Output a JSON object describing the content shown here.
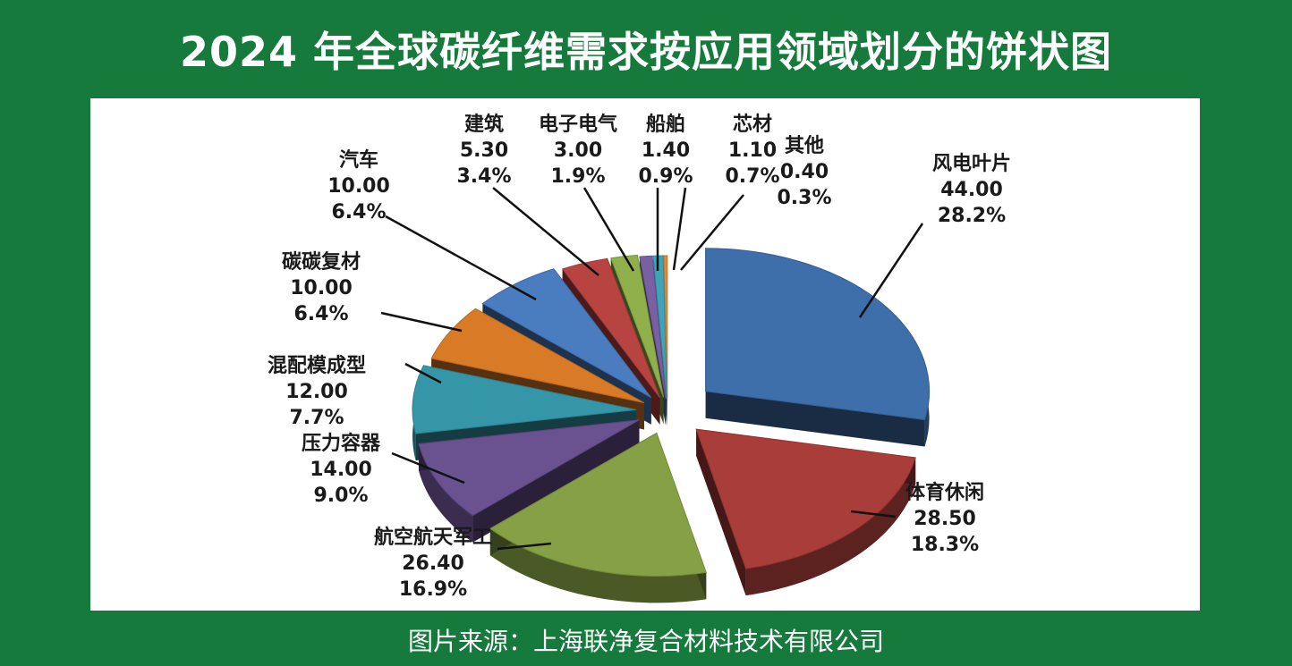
{
  "header": {
    "title": "2024 年全球碳纤维需求按应用领域划分的饼状图"
  },
  "footer": {
    "source": "图片来源：上海联净复合材料技术有限公司"
  },
  "chart_data": {
    "type": "pie",
    "title": "2024 年全球碳纤维需求按应用领域划分的饼状图",
    "slices": [
      {
        "label": "风电叶片",
        "value": "44.00",
        "percent": "28.2%",
        "color": "#3e6faa"
      },
      {
        "label": "体育休闲",
        "value": "28.50",
        "percent": "18.3%",
        "color": "#a83d39"
      },
      {
        "label": "航空航天军工",
        "value": "26.40",
        "percent": "16.9%",
        "color": "#86a145"
      },
      {
        "label": "压力容器",
        "value": "14.00",
        "percent": "9.0%",
        "color": "#6a5190"
      },
      {
        "label": "混配模成型",
        "value": "12.00",
        "percent": "7.7%",
        "color": "#3596a8"
      },
      {
        "label": "碳碳复材",
        "value": "10.00",
        "percent": "6.4%",
        "color": "#d97a26"
      },
      {
        "label": "汽车",
        "value": "10.00",
        "percent": "6.4%",
        "color": "#4a7cc0"
      },
      {
        "label": "建筑",
        "value": "5.30",
        "percent": "3.4%",
        "color": "#b84442"
      },
      {
        "label": "电子电气",
        "value": "3.00",
        "percent": "1.9%",
        "color": "#8fb04a"
      },
      {
        "label": "船舶",
        "value": "1.40",
        "percent": "0.9%",
        "color": "#7860a3"
      },
      {
        "label": "芯材",
        "value": "1.10",
        "percent": "0.7%",
        "color": "#3fa4b8"
      },
      {
        "label": "其他",
        "value": "0.40",
        "percent": "0.3%",
        "color": "#e08a34"
      }
    ]
  }
}
